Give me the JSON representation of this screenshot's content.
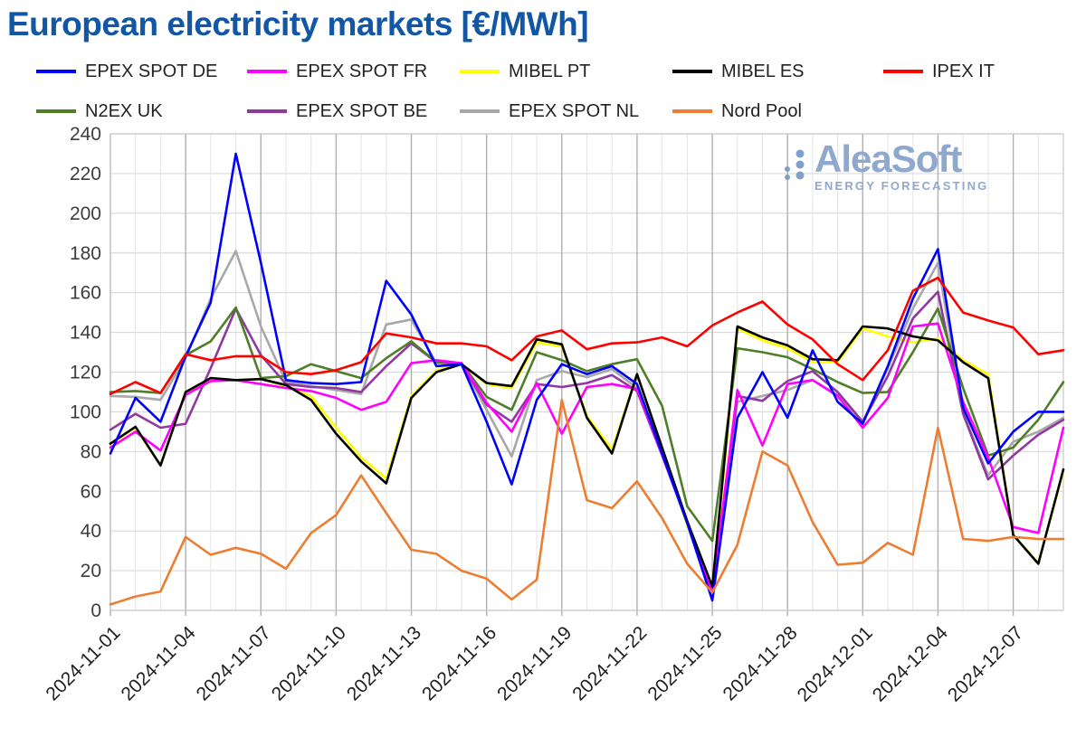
{
  "title": "European electricity markets [€/MWh]",
  "title_color": "#1256A6",
  "logo": {
    "text": "AleaSoft",
    "subtitle": "ENERGY FORECASTING",
    "color": "#8FA9CE",
    "dot_color": "#7F9FCA"
  },
  "legend": {
    "rows": [
      [
        "EPEX SPOT DE",
        "EPEX SPOT FR",
        "MIBEL PT",
        "MIBEL ES",
        "IPEX IT"
      ],
      [
        "N2EX UK",
        "EPEX SPOT BE",
        "EPEX SPOT NL",
        "Nord Pool"
      ]
    ]
  },
  "chart_data": {
    "type": "line",
    "ylabel": "",
    "xlabel": "",
    "ylim": [
      0,
      240
    ],
    "y_tick_step": 20,
    "grid": "on",
    "legend_position": "top",
    "x": [
      "2024-11-01",
      "2024-11-02",
      "2024-11-03",
      "2024-11-04",
      "2024-11-05",
      "2024-11-06",
      "2024-11-07",
      "2024-11-08",
      "2024-11-09",
      "2024-11-10",
      "2024-11-11",
      "2024-11-12",
      "2024-11-13",
      "2024-11-14",
      "2024-11-15",
      "2024-11-16",
      "2024-11-17",
      "2024-11-18",
      "2024-11-19",
      "2024-11-20",
      "2024-11-21",
      "2024-11-22",
      "2024-11-23",
      "2024-11-24",
      "2024-11-25",
      "2024-11-26",
      "2024-11-27",
      "2024-11-28",
      "2024-11-29",
      "2024-11-30",
      "2024-12-01",
      "2024-12-02",
      "2024-12-03",
      "2024-12-04",
      "2024-12-05",
      "2024-12-06",
      "2024-12-07",
      "2024-12-08",
      "2024-12-09"
    ],
    "x_tick_labels": [
      "2024-11-01",
      "2024-11-04",
      "2024-11-07",
      "2024-11-10",
      "2024-11-13",
      "2024-11-16",
      "2024-11-19",
      "2024-11-22",
      "2024-11-25",
      "2024-11-28",
      "2024-12-01",
      "2024-12-04",
      "2024-12-07"
    ],
    "x_tick_every": 3,
    "series": [
      {
        "name": "MIBEL PT",
        "color": "#FFFF00",
        "values": [
          84,
          92,
          73,
          110,
          116,
          116,
          116.5,
          113,
          108,
          92,
          77,
          66.5,
          108,
          121,
          124,
          114,
          112,
          135,
          133,
          98,
          81,
          119,
          80,
          43,
          9,
          142,
          136,
          132,
          125,
          125,
          142,
          138,
          135,
          137,
          126,
          119,
          38,
          24,
          70
        ]
      },
      {
        "name": "EPEX SPOT NL",
        "color": "#A8A8A8",
        "values": [
          108,
          107.5,
          106,
          127,
          157,
          181,
          143,
          115,
          113,
          111,
          109,
          144,
          146.5,
          124.5,
          124.5,
          101,
          77.5,
          116,
          120.5,
          117.5,
          121.5,
          112,
          78.5,
          45,
          10.5,
          105,
          108,
          111,
          116,
          108.5,
          95,
          122,
          152,
          175,
          99.5,
          68,
          85,
          90,
          97
        ]
      },
      {
        "name": "EPEX SPOT BE",
        "color": "#9038A0",
        "values": [
          91,
          99,
          92,
          94,
          122,
          152,
          128.5,
          114,
          112.5,
          112,
          110,
          123,
          134.5,
          125,
          124,
          103.5,
          95,
          114,
          112.5,
          114.5,
          118.5,
          110.5,
          78,
          44.5,
          10,
          108,
          105.5,
          115.5,
          120.5,
          110,
          95,
          118,
          147,
          160.5,
          99,
          66,
          78,
          88.5,
          96
        ]
      },
      {
        "name": "N2EX UK",
        "color": "#4E7E27",
        "values": [
          110,
          110.5,
          109.5,
          128.5,
          135.5,
          152.5,
          117,
          118,
          124,
          120.5,
          117,
          127,
          135.5,
          125,
          124.5,
          107.5,
          101,
          130,
          126,
          120.5,
          124,
          126.5,
          103,
          52.5,
          35,
          132,
          130,
          127.5,
          121.5,
          115,
          109.5,
          110,
          130,
          152,
          112,
          78,
          82,
          96,
          115
        ]
      },
      {
        "name": "EPEX SPOT FR",
        "color": "#FF00FF",
        "values": [
          82,
          90,
          80.5,
          108.5,
          115.5,
          116,
          114,
          112,
          110.5,
          107,
          101,
          105,
          124.5,
          126,
          124.5,
          104.5,
          90,
          114.5,
          89,
          112.5,
          114,
          111.5,
          78.5,
          44.5,
          9,
          111,
          83,
          114,
          116,
          108,
          92,
          107,
          143,
          144.5,
          105,
          77,
          42,
          39,
          92
        ]
      },
      {
        "name": "MIBEL ES",
        "color": "#000000",
        "values": [
          84,
          92.5,
          73,
          110,
          117,
          116,
          116.5,
          113.5,
          106,
          89,
          75,
          64,
          107,
          120,
          124,
          114.5,
          113,
          136.5,
          134,
          97,
          79,
          119,
          82,
          45,
          12,
          143,
          137.5,
          133.5,
          126.5,
          126,
          143,
          142,
          138,
          136,
          125,
          117,
          38,
          23.5,
          71
        ]
      },
      {
        "name": "EPEX SPOT DE",
        "color": "#0000FF",
        "values": [
          79,
          107,
          95,
          128,
          155,
          230,
          175,
          116,
          114.5,
          114,
          115,
          166,
          149,
          123,
          124,
          95,
          63.5,
          106,
          124,
          119,
          123,
          114,
          79,
          44,
          5,
          97,
          120,
          97,
          131,
          105,
          94,
          123,
          157,
          182,
          102,
          74,
          90,
          100,
          100
        ]
      },
      {
        "name": "IPEX IT",
        "color": "#FF0000",
        "values": [
          109,
          115,
          109.5,
          129,
          126,
          128,
          128,
          120,
          119,
          121,
          125,
          139.5,
          137.5,
          134.5,
          134.5,
          133,
          126,
          138,
          141,
          131.5,
          134.5,
          135,
          137.5,
          133,
          143.5,
          150,
          155.5,
          144,
          136.5,
          124,
          116,
          131,
          161,
          167.5,
          150,
          146,
          142.5,
          129,
          131
        ]
      },
      {
        "name": "Nord Pool",
        "color": "#ED7D31",
        "values": [
          3,
          7,
          9.5,
          37,
          28,
          31.5,
          28.5,
          21,
          39,
          48,
          68,
          49,
          30.5,
          28.5,
          20,
          16,
          5.5,
          15.5,
          106,
          55.5,
          51.5,
          65,
          46.5,
          23.5,
          9,
          33,
          80,
          73,
          44.5,
          23,
          24,
          34,
          28,
          92,
          36,
          35,
          37,
          36,
          36
        ]
      }
    ],
    "style": {
      "grid_h": "#d9d9d9",
      "grid_minor_v": "#e4e4e4",
      "grid_major_v": "#b0b0b0",
      "border": "#c9c9c9",
      "y_label_color": "#3d3d3d",
      "x_label_color": "#1f1f1f"
    }
  }
}
